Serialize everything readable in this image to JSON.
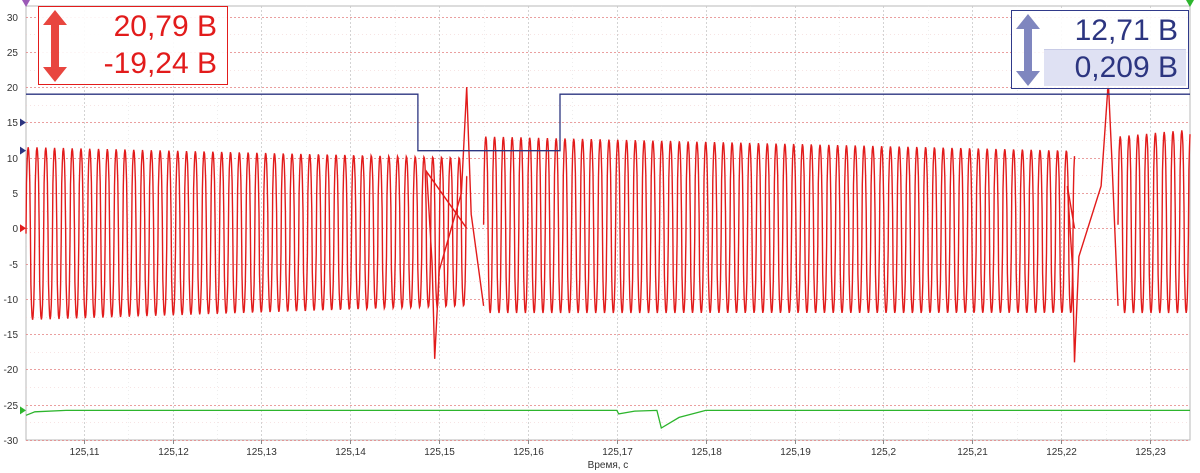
{
  "colors": {
    "channel_a": "#e21b1b",
    "channel_b": "#2c3580",
    "channel_c": "#2db52d",
    "grid": "#e38080",
    "axis": "#333333"
  },
  "readouts": {
    "channel_a": {
      "max": "20,79 В",
      "min": "-19,24 В"
    },
    "channel_b": {
      "max": "12,71 В",
      "min": "0,209 В"
    }
  },
  "chart_data": {
    "type": "line",
    "xlabel": "Время, с",
    "x_ticks": [
      "125,11",
      "125,12",
      "125,13",
      "125,14",
      "125,15",
      "125,16",
      "125,17",
      "125,18",
      "125,19",
      "125,2",
      "125,21",
      "125,22",
      "125,23"
    ],
    "x_tick_values": [
      125.11,
      125.12,
      125.13,
      125.14,
      125.15,
      125.16,
      125.17,
      125.18,
      125.19,
      125.2,
      125.21,
      125.22,
      125.23
    ],
    "xlim": [
      125.1035,
      125.2345
    ],
    "y_ticks": [
      "30",
      "25",
      "20",
      "15",
      "10",
      "5",
      "0",
      "-5",
      "-10",
      "-15",
      "-20",
      "-25",
      "-30"
    ],
    "y_tick_values": [
      30,
      25,
      20,
      15,
      10,
      5,
      0,
      -5,
      -10,
      -15,
      -20,
      -25,
      -30
    ],
    "ylim": [
      -30,
      31.5
    ],
    "grid": true,
    "series": [
      {
        "channel": "A",
        "style": "oscillation",
        "segments": [
          {
            "x_start": 125.1035,
            "x_end": 125.1531,
            "period": 0.00099,
            "max_start": 11.5,
            "max_end": 10.0,
            "min_start": -13.0,
            "min_end": -11.0
          },
          {
            "x_start": 125.155,
            "x_end": 125.2215,
            "period": 0.00099,
            "max_start": 13.0,
            "max_end": 11.0,
            "min_start": -12.0,
            "min_end": -12.0
          },
          {
            "x_start": 125.2264,
            "x_end": 125.2345,
            "period": 0.00099,
            "max_start": 13.0,
            "max_end": 14.0,
            "min_start": -12.0,
            "min_end": -12.0
          }
        ],
        "spikes": [
          {
            "x": 125.1495,
            "y": -18.5
          },
          {
            "x": 125.1531,
            "y": 20.0
          },
          {
            "x": 125.2215,
            "y": -19.0
          },
          {
            "x": 125.2253,
            "y": 20.8
          }
        ]
      },
      {
        "channel": "B",
        "style": "step",
        "points": [
          [
            125.1035,
            19.0
          ],
          [
            125.1476,
            19.0
          ],
          [
            125.1476,
            11.0
          ],
          [
            125.1636,
            11.0
          ],
          [
            125.1636,
            19.0
          ],
          [
            125.2345,
            19.0
          ]
        ]
      },
      {
        "channel": "C",
        "style": "line",
        "points": [
          [
            125.1035,
            -26.5
          ],
          [
            125.1045,
            -26.0
          ],
          [
            125.108,
            -25.8
          ],
          [
            125.17,
            -25.8
          ],
          [
            125.1702,
            -26.3
          ],
          [
            125.172,
            -25.9
          ],
          [
            125.1745,
            -25.8
          ],
          [
            125.175,
            -28.3
          ],
          [
            125.177,
            -26.8
          ],
          [
            125.18,
            -25.8
          ],
          [
            125.2345,
            -25.8
          ]
        ]
      }
    ]
  }
}
